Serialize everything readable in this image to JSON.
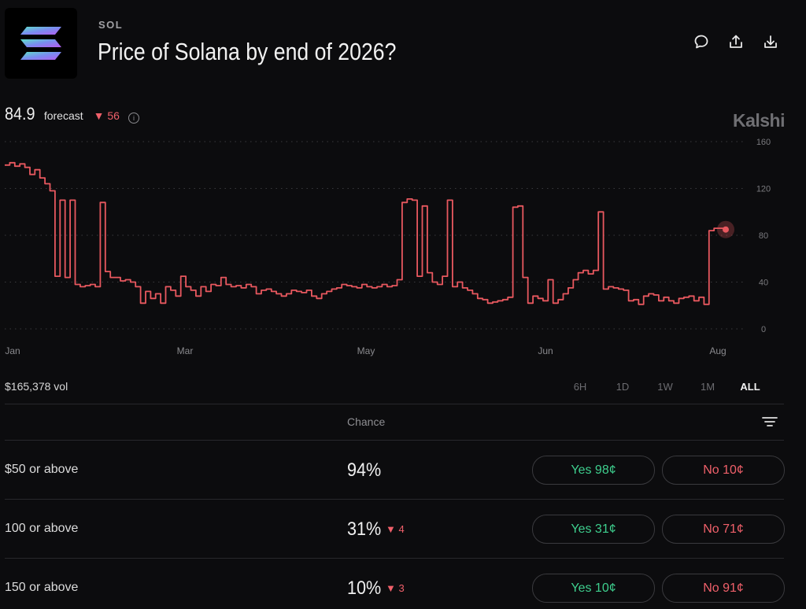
{
  "header": {
    "ticker": "SOL",
    "title": "Price of Solana by end of 2026?",
    "icons": [
      "comment-icon",
      "share-icon",
      "download-icon"
    ]
  },
  "forecast": {
    "value": "84.9",
    "label": "forecast",
    "change": "▼ 56"
  },
  "brand": "Kalshi",
  "colors": {
    "line": "#e8585f",
    "yes": "#3ecf8e",
    "no": "#f0606a",
    "bg": "#0c0c0e"
  },
  "chart_data": {
    "type": "line",
    "x_labels": [
      "Jan",
      "Mar",
      "May",
      "Jun",
      "Aug"
    ],
    "y_ticks": [
      0,
      40,
      80,
      120,
      160
    ],
    "ylim": [
      0,
      160
    ],
    "grid": true,
    "series": [
      {
        "values": [
          140,
          142,
          139,
          141,
          138,
          132,
          136,
          129,
          124,
          118,
          45,
          110,
          44,
          110,
          38,
          36,
          37,
          38,
          36,
          108,
          49,
          44,
          44,
          41,
          42,
          40,
          36,
          22,
          32,
          26,
          30,
          22,
          36,
          33,
          28,
          45,
          36,
          33,
          28,
          36,
          32,
          38,
          37,
          44,
          38,
          36,
          37,
          35,
          38,
          36,
          30,
          33,
          34,
          32,
          30,
          28,
          30,
          33,
          32,
          31,
          33,
          28,
          26,
          30,
          32,
          34,
          35,
          38,
          37,
          36,
          35,
          38,
          36,
          35,
          36,
          38,
          36,
          37,
          42,
          108,
          111,
          110,
          45,
          105,
          48,
          40,
          38,
          45,
          110,
          36,
          40,
          35,
          33,
          30,
          26,
          25,
          22,
          23,
          24,
          25,
          27,
          104,
          105,
          44,
          22,
          28,
          26,
          24,
          42,
          22,
          25,
          30,
          35,
          42,
          48,
          50,
          47,
          50,
          100,
          34,
          36,
          35,
          34,
          33,
          24,
          25,
          21,
          28,
          30,
          29,
          24,
          27,
          24,
          22,
          26,
          27,
          28,
          24,
          27,
          21,
          84,
          86,
          86,
          84
        ]
      }
    ],
    "last_value": 84.9
  },
  "footer": {
    "volume": "$165,378 vol",
    "ranges": [
      "6H",
      "1D",
      "1W",
      "1M",
      "ALL"
    ],
    "active_range": "ALL"
  },
  "table": {
    "chance_header": "Chance",
    "rows": [
      {
        "label": "$50 or above",
        "chance": "94%",
        "change": "",
        "yes": "Yes 98¢",
        "no": "No 10¢"
      },
      {
        "label": "100 or above",
        "chance": "31%",
        "change": "▼ 4",
        "yes": "Yes 31¢",
        "no": "No 71¢"
      },
      {
        "label": "150 or above",
        "chance": "10%",
        "change": "▼ 3",
        "yes": "Yes 10¢",
        "no": "No 91¢"
      }
    ]
  }
}
